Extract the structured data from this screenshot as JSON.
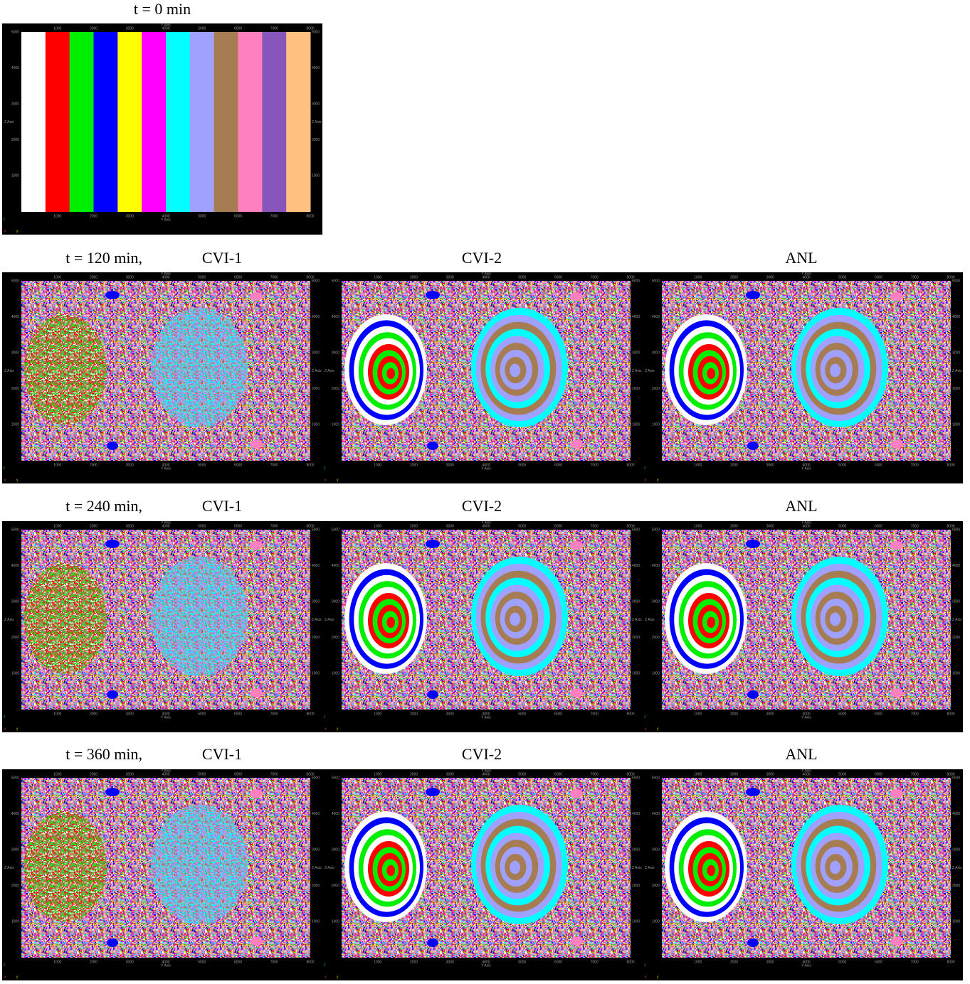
{
  "figure": {
    "axes": {
      "x_title": "Y Axis",
      "y_title": "Z Axis",
      "xlim": [
        0,
        8000
      ],
      "ylim": [
        0,
        5000
      ],
      "xticks": [
        1000,
        2000,
        3000,
        4000,
        5000,
        6000,
        7000,
        8000
      ],
      "yticks": [
        1000,
        2000,
        3000,
        4000,
        5000
      ],
      "corner_labels": [
        "z",
        "x",
        "y"
      ]
    },
    "colors": [
      "#ffffff",
      "#ff0000",
      "#00ee00",
      "#0000ff",
      "#ffff00",
      "#ff00ff",
      "#00ffff",
      "#a0a0ff",
      "#a67c52",
      "#ff80c0",
      "#8855bb",
      "#ffc080"
    ],
    "initial": {
      "time": "t = 0 min"
    },
    "rows": [
      {
        "time": "t = 120 min,",
        "methods": [
          "CVI-1",
          "CVI-2",
          "ANL"
        ]
      },
      {
        "time": "t = 240 min,",
        "methods": [
          "CVI-1",
          "CVI-2",
          "ANL"
        ]
      },
      {
        "time": "t = 360 min,",
        "methods": [
          "CVI-1",
          "CVI-2",
          "ANL"
        ]
      }
    ]
  }
}
